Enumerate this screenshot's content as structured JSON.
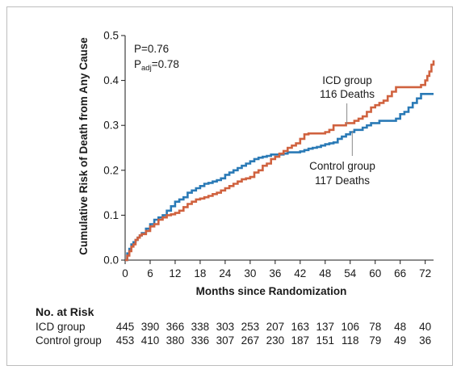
{
  "chart_data": {
    "type": "line",
    "step": true,
    "xlabel": "Months since Randomization",
    "ylabel": "Cumulative Risk of Death from Any Cause",
    "xlim": [
      0,
      74
    ],
    "ylim": [
      0,
      0.5
    ],
    "xticks": [
      0,
      6,
      12,
      18,
      24,
      30,
      36,
      42,
      48,
      54,
      60,
      66,
      72
    ],
    "yticks": [
      "0.0",
      "0.1",
      "0.2",
      "0.3",
      "0.4",
      "0.5"
    ],
    "grid": false,
    "annotation": {
      "p_label": "P",
      "p_value": "=0.76",
      "padj_label": "P",
      "padj_sub": "adj",
      "padj_value": "=0.78"
    },
    "series": [
      {
        "name": "ICD group",
        "deaths": "116 Deaths",
        "color": "#d0623f",
        "x": [
          0,
          0.5,
          1,
          1.5,
          2,
          2.5,
          3,
          3.5,
          4,
          5,
          6,
          7,
          8,
          9,
          10,
          11,
          12,
          13,
          14,
          15,
          16,
          17,
          18,
          19,
          20,
          21,
          22,
          23,
          24,
          25,
          26,
          27,
          28,
          29,
          30,
          31,
          32,
          33,
          34,
          35,
          36,
          37,
          38,
          39,
          40,
          41,
          42,
          43,
          44,
          45,
          46,
          47,
          48,
          49,
          50,
          51,
          52,
          53,
          54,
          55,
          56,
          57,
          58,
          59,
          60,
          61,
          62,
          63,
          64,
          65,
          66,
          67,
          68,
          69,
          70,
          71,
          72,
          72.5,
          73,
          73.5,
          74
        ],
        "y": [
          0,
          0.01,
          0.02,
          0.03,
          0.035,
          0.045,
          0.05,
          0.055,
          0.058,
          0.065,
          0.075,
          0.08,
          0.09,
          0.095,
          0.1,
          0.102,
          0.105,
          0.11,
          0.118,
          0.125,
          0.13,
          0.135,
          0.137,
          0.14,
          0.143,
          0.147,
          0.15,
          0.155,
          0.16,
          0.165,
          0.17,
          0.175,
          0.18,
          0.182,
          0.185,
          0.195,
          0.2,
          0.21,
          0.215,
          0.225,
          0.23,
          0.237,
          0.243,
          0.25,
          0.255,
          0.26,
          0.27,
          0.28,
          0.282,
          0.282,
          0.282,
          0.282,
          0.285,
          0.29,
          0.3,
          0.3,
          0.3,
          0.305,
          0.305,
          0.31,
          0.315,
          0.32,
          0.33,
          0.34,
          0.345,
          0.35,
          0.355,
          0.365,
          0.375,
          0.385,
          0.385,
          0.385,
          0.385,
          0.385,
          0.385,
          0.39,
          0.4,
          0.41,
          0.42,
          0.435,
          0.445
        ]
      },
      {
        "name": "Control group",
        "deaths": "117 Deaths",
        "color": "#2a7ab6",
        "x": [
          0,
          0.5,
          1,
          1.5,
          2,
          2.5,
          3,
          3.5,
          4,
          5,
          6,
          7,
          8,
          9,
          10,
          11,
          12,
          13,
          14,
          15,
          16,
          17,
          18,
          19,
          20,
          21,
          22,
          23,
          24,
          25,
          26,
          27,
          28,
          29,
          30,
          31,
          32,
          33,
          34,
          35,
          36,
          37,
          38,
          39,
          40,
          41,
          42,
          43,
          44,
          45,
          46,
          47,
          48,
          49,
          50,
          51,
          52,
          53,
          54,
          55,
          56,
          57,
          58,
          59,
          60,
          61,
          62,
          63,
          64,
          65,
          66,
          67,
          68,
          69,
          70,
          71,
          72,
          73,
          74
        ],
        "y": [
          0,
          0.015,
          0.025,
          0.035,
          0.04,
          0.045,
          0.05,
          0.055,
          0.06,
          0.07,
          0.08,
          0.09,
          0.095,
          0.1,
          0.11,
          0.12,
          0.13,
          0.135,
          0.14,
          0.15,
          0.155,
          0.16,
          0.165,
          0.17,
          0.172,
          0.175,
          0.178,
          0.182,
          0.19,
          0.195,
          0.2,
          0.205,
          0.21,
          0.215,
          0.22,
          0.225,
          0.228,
          0.23,
          0.232,
          0.235,
          0.235,
          0.235,
          0.237,
          0.24,
          0.24,
          0.24,
          0.242,
          0.245,
          0.248,
          0.25,
          0.252,
          0.255,
          0.258,
          0.26,
          0.262,
          0.27,
          0.275,
          0.28,
          0.285,
          0.29,
          0.29,
          0.295,
          0.3,
          0.305,
          0.305,
          0.31,
          0.31,
          0.31,
          0.31,
          0.315,
          0.325,
          0.33,
          0.34,
          0.35,
          0.36,
          0.37,
          0.37,
          0.37,
          0.37
        ]
      }
    ],
    "at_risk": {
      "title": "No. at Risk",
      "rows": [
        {
          "label": "ICD group",
          "values": [
            "445",
            "390",
            "366",
            "338",
            "303",
            "253",
            "207",
            "163",
            "137",
            "106",
            "78",
            "48",
            "40"
          ]
        },
        {
          "label": "Control group",
          "values": [
            "453",
            "410",
            "380",
            "336",
            "307",
            "267",
            "230",
            "187",
            "151",
            "118",
            "79",
            "49",
            "36"
          ]
        }
      ]
    }
  }
}
